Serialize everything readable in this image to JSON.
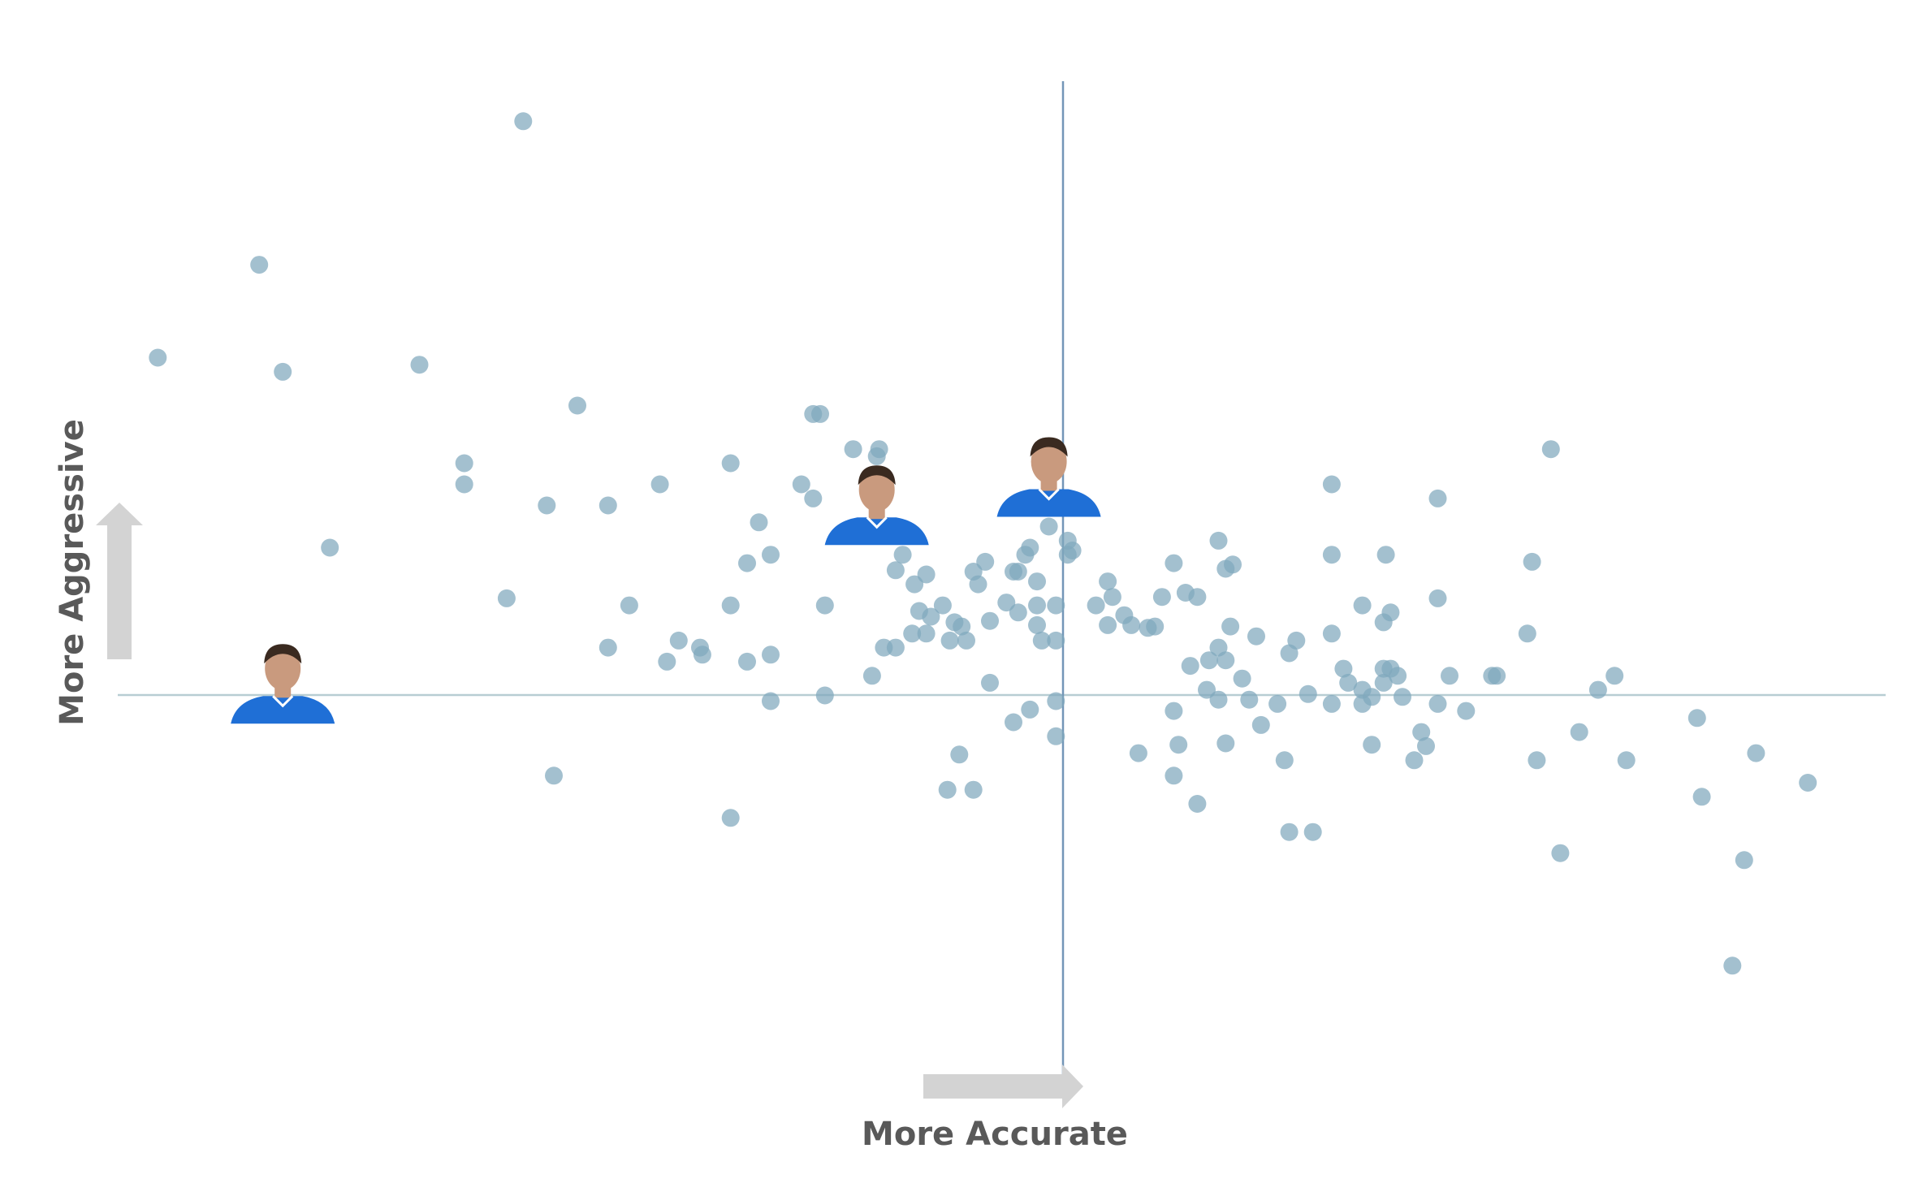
{
  "chart_data": {
    "type": "scatter",
    "title": "",
    "xlabel": "More Accurate",
    "ylabel": "More Aggressive",
    "xlim": [
      -4,
      3.5
    ],
    "ylim": [
      -3.5,
      4
    ],
    "grid": false,
    "reference_lines": {
      "x": 0,
      "y": 0
    },
    "colors": {
      "point": "#7fa8bd",
      "point_overlap": "#5b8ea8",
      "ref_line_x": "#7396b7",
      "ref_line_y": "#b7cdd3",
      "arrow": "#d3d3d3",
      "axis_title": "#595959",
      "jersey": "#1f6fd6",
      "skin": "#c99a7e",
      "hair": "#3a2a20"
    },
    "points": [
      [
        -2.28,
        3.6
      ],
      [
        -3.4,
        2.58
      ],
      [
        -3.83,
        1.92
      ],
      [
        -3.3,
        1.82
      ],
      [
        -2.72,
        1.87
      ],
      [
        -3.1,
        0.57
      ],
      [
        -2.53,
        1.17
      ],
      [
        -2.53,
        1.02
      ],
      [
        -2.05,
        1.58
      ],
      [
        -2.18,
        0.87
      ],
      [
        -1.92,
        0.87
      ],
      [
        -1.7,
        1.02
      ],
      [
        -1.4,
        1.17
      ],
      [
        -1.28,
        0.75
      ],
      [
        -1.23,
        0.52
      ],
      [
        -1.33,
        0.46
      ],
      [
        -1.05,
        1.52
      ],
      [
        -1.1,
        1.02
      ],
      [
        -1.05,
        0.92
      ],
      [
        -1.02,
        1.52
      ],
      [
        -0.88,
        1.27
      ],
      [
        -0.77,
        1.27
      ],
      [
        -0.78,
        1.22
      ],
      [
        -2.35,
        0.21
      ],
      [
        -1.4,
        0.16
      ],
      [
        -1.0,
        0.16
      ],
      [
        -0.05,
        0.72
      ],
      [
        -0.13,
        0.57
      ],
      [
        -0.57,
        0.38
      ],
      [
        -0.7,
        0.41
      ],
      [
        -0.67,
        0.52
      ],
      [
        -0.72,
        0.71
      ],
      [
        -0.32,
        0.47
      ],
      [
        -0.37,
        0.4
      ],
      [
        -0.62,
        0.31
      ],
      [
        -0.6,
        0.12
      ],
      [
        -0.7,
        -0.14
      ],
      [
        -0.75,
        -0.14
      ],
      [
        -0.63,
        -0.04
      ],
      [
        -0.57,
        -0.04
      ],
      [
        -0.47,
        -0.09
      ],
      [
        -0.42,
        0.01
      ],
      [
        -0.3,
        0.05
      ],
      [
        -0.23,
        0.18
      ],
      [
        -0.2,
        0.4
      ],
      [
        0.03,
        0.62
      ],
      [
        -0.08,
        -0.09
      ],
      [
        -0.4,
        -0.09
      ],
      [
        -0.35,
        0.31
      ],
      [
        -0.5,
        0.16
      ],
      [
        -0.55,
        0.08
      ],
      [
        -0.45,
        0.04
      ],
      [
        -0.18,
        0.11
      ],
      [
        -0.18,
        0.4
      ],
      [
        -0.15,
        0.52
      ],
      [
        -0.1,
        0.33
      ],
      [
        0.03,
        0.52
      ],
      [
        0.05,
        0.55
      ],
      [
        0.15,
        0.16
      ],
      [
        0.2,
        0.33
      ],
      [
        0.22,
        0.22
      ],
      [
        0.27,
        0.09
      ],
      [
        0.3,
        0.02
      ],
      [
        0.2,
        0.02
      ],
      [
        0.37,
        0.0
      ],
      [
        0.4,
        0.01
      ],
      [
        0.43,
        0.22
      ],
      [
        0.53,
        0.25
      ],
      [
        0.58,
        0.22
      ],
      [
        0.48,
        0.46
      ],
      [
        0.67,
        0.62
      ],
      [
        0.73,
        0.45
      ],
      [
        0.7,
        0.42
      ],
      [
        -0.02,
        -0.09
      ],
      [
        -0.02,
        0.16
      ],
      [
        -0.1,
        0.02
      ],
      [
        -0.1,
        0.16
      ],
      [
        -1.67,
        -0.24
      ],
      [
        -1.33,
        -0.24
      ],
      [
        -1.53,
        -0.14
      ],
      [
        -1.23,
        -0.52
      ],
      [
        -1.0,
        -0.48
      ],
      [
        -1.83,
        0.16
      ],
      [
        -1.92,
        -0.14
      ],
      [
        -1.62,
        -0.09
      ],
      [
        -1.52,
        -0.19
      ],
      [
        -2.15,
        -1.05
      ],
      [
        -1.4,
        -1.35
      ],
      [
        -1.23,
        -0.19
      ],
      [
        -0.8,
        -0.34
      ],
      [
        -0.3,
        -0.39
      ],
      [
        -0.2,
        -0.67
      ],
      [
        -0.43,
        -0.9
      ],
      [
        -0.37,
        -1.15
      ],
      [
        -0.48,
        -1.15
      ],
      [
        -0.13,
        -0.58
      ],
      [
        -0.02,
        -0.52
      ],
      [
        -0.02,
        -0.77
      ],
      [
        0.63,
        -0.23
      ],
      [
        0.48,
        -0.59
      ],
      [
        0.5,
        -0.83
      ],
      [
        0.58,
        -1.25
      ],
      [
        0.33,
        -0.89
      ],
      [
        0.48,
        -1.05
      ],
      [
        0.62,
        -0.44
      ],
      [
        0.55,
        -0.27
      ],
      [
        0.67,
        -0.14
      ],
      [
        0.7,
        -0.23
      ],
      [
        0.77,
        -0.36
      ],
      [
        0.8,
        -0.51
      ],
      [
        0.67,
        -0.51
      ],
      [
        0.7,
        -0.82
      ],
      [
        0.85,
        -0.69
      ],
      [
        0.92,
        -0.54
      ],
      [
        0.95,
        -0.94
      ],
      [
        0.97,
        -1.45
      ],
      [
        1.0,
        -0.09
      ],
      [
        0.97,
        -0.18
      ],
      [
        0.72,
        0.01
      ],
      [
        0.83,
        -0.06
      ],
      [
        1.05,
        -0.47
      ],
      [
        1.15,
        -0.54
      ],
      [
        1.07,
        -1.45
      ],
      [
        1.2,
        -0.29
      ],
      [
        1.28,
        0.16
      ],
      [
        1.32,
        -0.83
      ],
      [
        1.37,
        -0.39
      ],
      [
        1.37,
        -0.29
      ],
      [
        1.4,
        -0.29
      ],
      [
        1.43,
        -0.34
      ],
      [
        1.45,
        -0.49
      ],
      [
        1.5,
        -0.94
      ],
      [
        1.53,
        -0.74
      ],
      [
        1.55,
        -0.84
      ],
      [
        1.38,
        0.52
      ],
      [
        1.15,
        0.52
      ],
      [
        1.15,
        -0.04
      ],
      [
        1.22,
        -0.39
      ],
      [
        1.28,
        -0.44
      ],
      [
        1.28,
        -0.54
      ],
      [
        1.32,
        -0.49
      ],
      [
        1.37,
        0.04
      ],
      [
        1.4,
        0.11
      ],
      [
        1.6,
        -0.54
      ],
      [
        1.65,
        -0.34
      ],
      [
        1.6,
        0.21
      ],
      [
        1.6,
        0.92
      ],
      [
        1.15,
        1.02
      ],
      [
        1.72,
        -0.59
      ],
      [
        1.83,
        -0.34
      ],
      [
        1.85,
        -0.34
      ],
      [
        2.02,
        -0.94
      ],
      [
        2.0,
        0.47
      ],
      [
        2.08,
        1.27
      ],
      [
        1.98,
        -0.04
      ],
      [
        2.12,
        -1.6
      ],
      [
        2.2,
        -0.74
      ],
      [
        2.28,
        -0.44
      ],
      [
        2.35,
        -0.34
      ],
      [
        2.4,
        -0.94
      ],
      [
        2.7,
        -0.64
      ],
      [
        2.72,
        -1.2
      ],
      [
        2.85,
        -2.4
      ],
      [
        2.9,
        -1.65
      ],
      [
        2.95,
        -0.89
      ],
      [
        3.17,
        -1.1
      ]
    ],
    "highlights": [
      {
        "x": -0.05,
        "y": 0.72,
        "marker": "player-photo"
      },
      {
        "x": -0.78,
        "y": 0.52,
        "marker": "player-photo"
      },
      {
        "x": -3.3,
        "y": -0.75,
        "marker": "player-photo"
      }
    ]
  }
}
